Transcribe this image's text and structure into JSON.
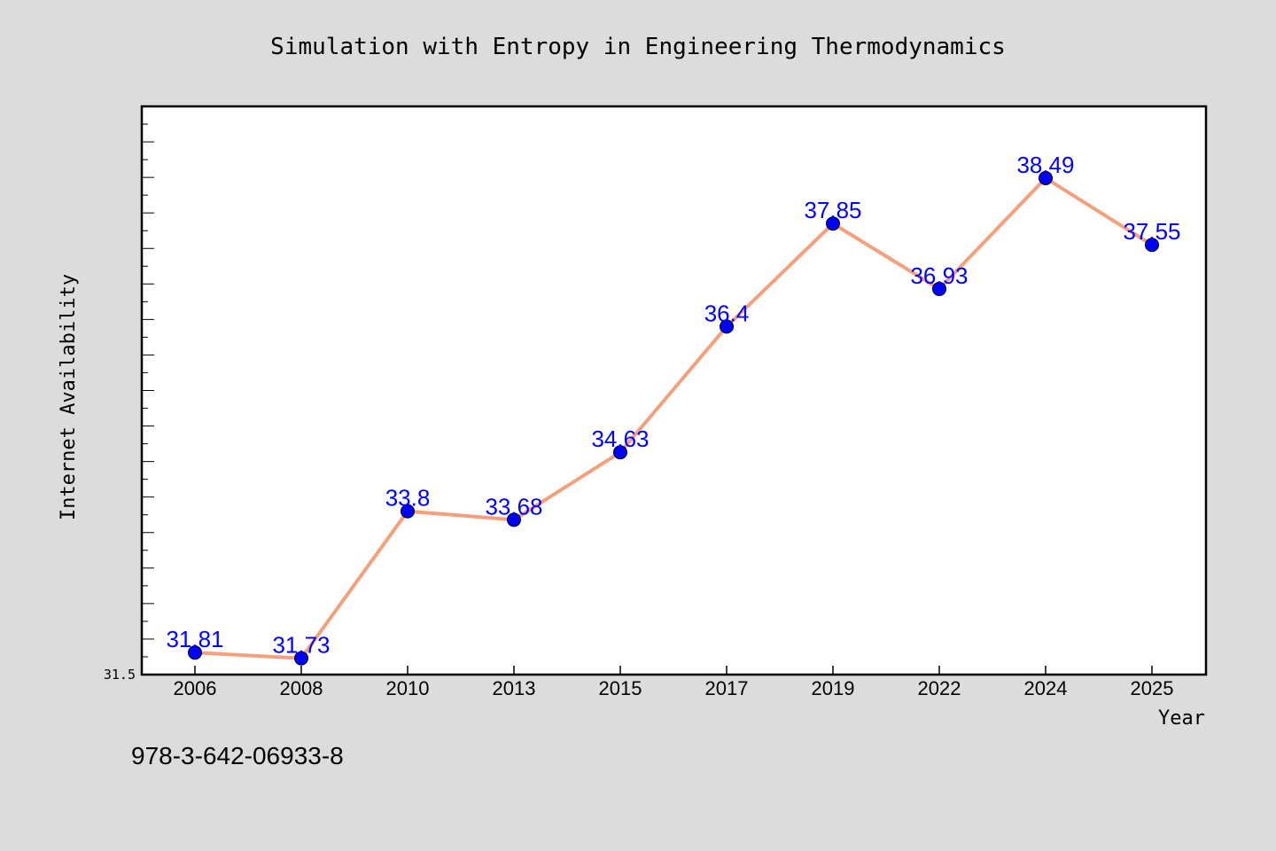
{
  "chart_data": {
    "type": "line",
    "title": "Simulation with Entropy in Engineering Thermodynamics",
    "xlabel": "Year",
    "ylabel": "Internet Availability",
    "categories": [
      "2006",
      "2008",
      "2010",
      "2013",
      "2015",
      "2017",
      "2019",
      "2022",
      "2024",
      "2025"
    ],
    "series": [
      {
        "values": [
          31.81,
          31.73,
          33.8,
          33.68,
          34.63,
          36.4,
          37.85,
          36.93,
          38.49,
          37.55
        ]
      }
    ],
    "data_labels": [
      "31.81",
      "31.73",
      "33.8",
      "33.68",
      "34.63",
      "36.4",
      "37.85",
      "36.93",
      "38.49",
      "37.55"
    ],
    "ylim": [
      31.5,
      39.5
    ],
    "yticks_labeled": [
      "31.5"
    ],
    "grid": false,
    "legend": "none",
    "colors": {
      "background": "#dcdcdc",
      "plot_background": "#ffffff",
      "line": "#f4a07c",
      "marker": "#0000ff",
      "data_label": "#0000ff"
    }
  },
  "footer_text": "978-3-642-06933-8"
}
